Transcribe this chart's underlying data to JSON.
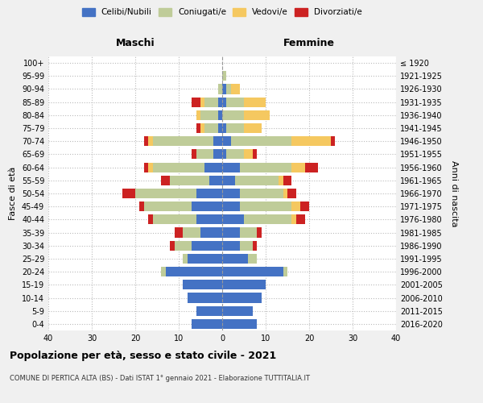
{
  "age_groups": [
    "0-4",
    "5-9",
    "10-14",
    "15-19",
    "20-24",
    "25-29",
    "30-34",
    "35-39",
    "40-44",
    "45-49",
    "50-54",
    "55-59",
    "60-64",
    "65-69",
    "70-74",
    "75-79",
    "80-84",
    "85-89",
    "90-94",
    "95-99",
    "100+"
  ],
  "birth_years": [
    "2016-2020",
    "2011-2015",
    "2006-2010",
    "2001-2005",
    "1996-2000",
    "1991-1995",
    "1986-1990",
    "1981-1985",
    "1976-1980",
    "1971-1975",
    "1966-1970",
    "1961-1965",
    "1956-1960",
    "1951-1955",
    "1946-1950",
    "1941-1945",
    "1936-1940",
    "1931-1935",
    "1926-1930",
    "1921-1925",
    "≤ 1920"
  ],
  "males": {
    "celibi": [
      7,
      6,
      8,
      9,
      13,
      8,
      7,
      5,
      6,
      7,
      6,
      3,
      4,
      2,
      2,
      1,
      1,
      1,
      0,
      0,
      0
    ],
    "coniugati": [
      0,
      0,
      0,
      0,
      1,
      1,
      4,
      4,
      10,
      11,
      14,
      9,
      12,
      4,
      14,
      3,
      4,
      3,
      1,
      0,
      0
    ],
    "vedovi": [
      0,
      0,
      0,
      0,
      0,
      0,
      0,
      0,
      0,
      0,
      0,
      0,
      1,
      0,
      1,
      1,
      1,
      1,
      0,
      0,
      0
    ],
    "divorziati": [
      0,
      0,
      0,
      0,
      0,
      0,
      1,
      2,
      1,
      1,
      3,
      2,
      1,
      1,
      1,
      1,
      0,
      2,
      0,
      0,
      0
    ]
  },
  "females": {
    "nubili": [
      8,
      7,
      9,
      10,
      14,
      6,
      4,
      4,
      5,
      4,
      4,
      3,
      4,
      1,
      2,
      1,
      0,
      1,
      1,
      0,
      0
    ],
    "coniugate": [
      0,
      0,
      0,
      0,
      1,
      2,
      3,
      4,
      11,
      12,
      10,
      10,
      12,
      4,
      14,
      4,
      5,
      4,
      1,
      1,
      0
    ],
    "vedove": [
      0,
      0,
      0,
      0,
      0,
      0,
      0,
      0,
      1,
      2,
      1,
      1,
      3,
      2,
      9,
      4,
      6,
      5,
      2,
      0,
      0
    ],
    "divorziate": [
      0,
      0,
      0,
      0,
      0,
      0,
      1,
      1,
      2,
      2,
      2,
      2,
      3,
      1,
      1,
      0,
      0,
      0,
      0,
      0,
      0
    ]
  },
  "colors": {
    "celibi": "#4472C4",
    "coniugati": "#BFCC99",
    "vedovi": "#F5C860",
    "divorziati": "#CC2222"
  },
  "xlim": 40,
  "title": "Popolazione per età, sesso e stato civile - 2021",
  "subtitle": "COMUNE DI PERTICA ALTA (BS) - Dati ISTAT 1° gennaio 2021 - Elaborazione TUTTITALIA.IT",
  "ylabel_left": "Fasce di età",
  "ylabel_right": "Anni di nascita",
  "xlabel_left": "Maschi",
  "xlabel_right": "Femmine",
  "legend_labels": [
    "Celibi/Nubili",
    "Coniugati/e",
    "Vedovi/e",
    "Divorziati/e"
  ],
  "bg_color": "#F0F0F0",
  "plot_bg": "#FFFFFF"
}
